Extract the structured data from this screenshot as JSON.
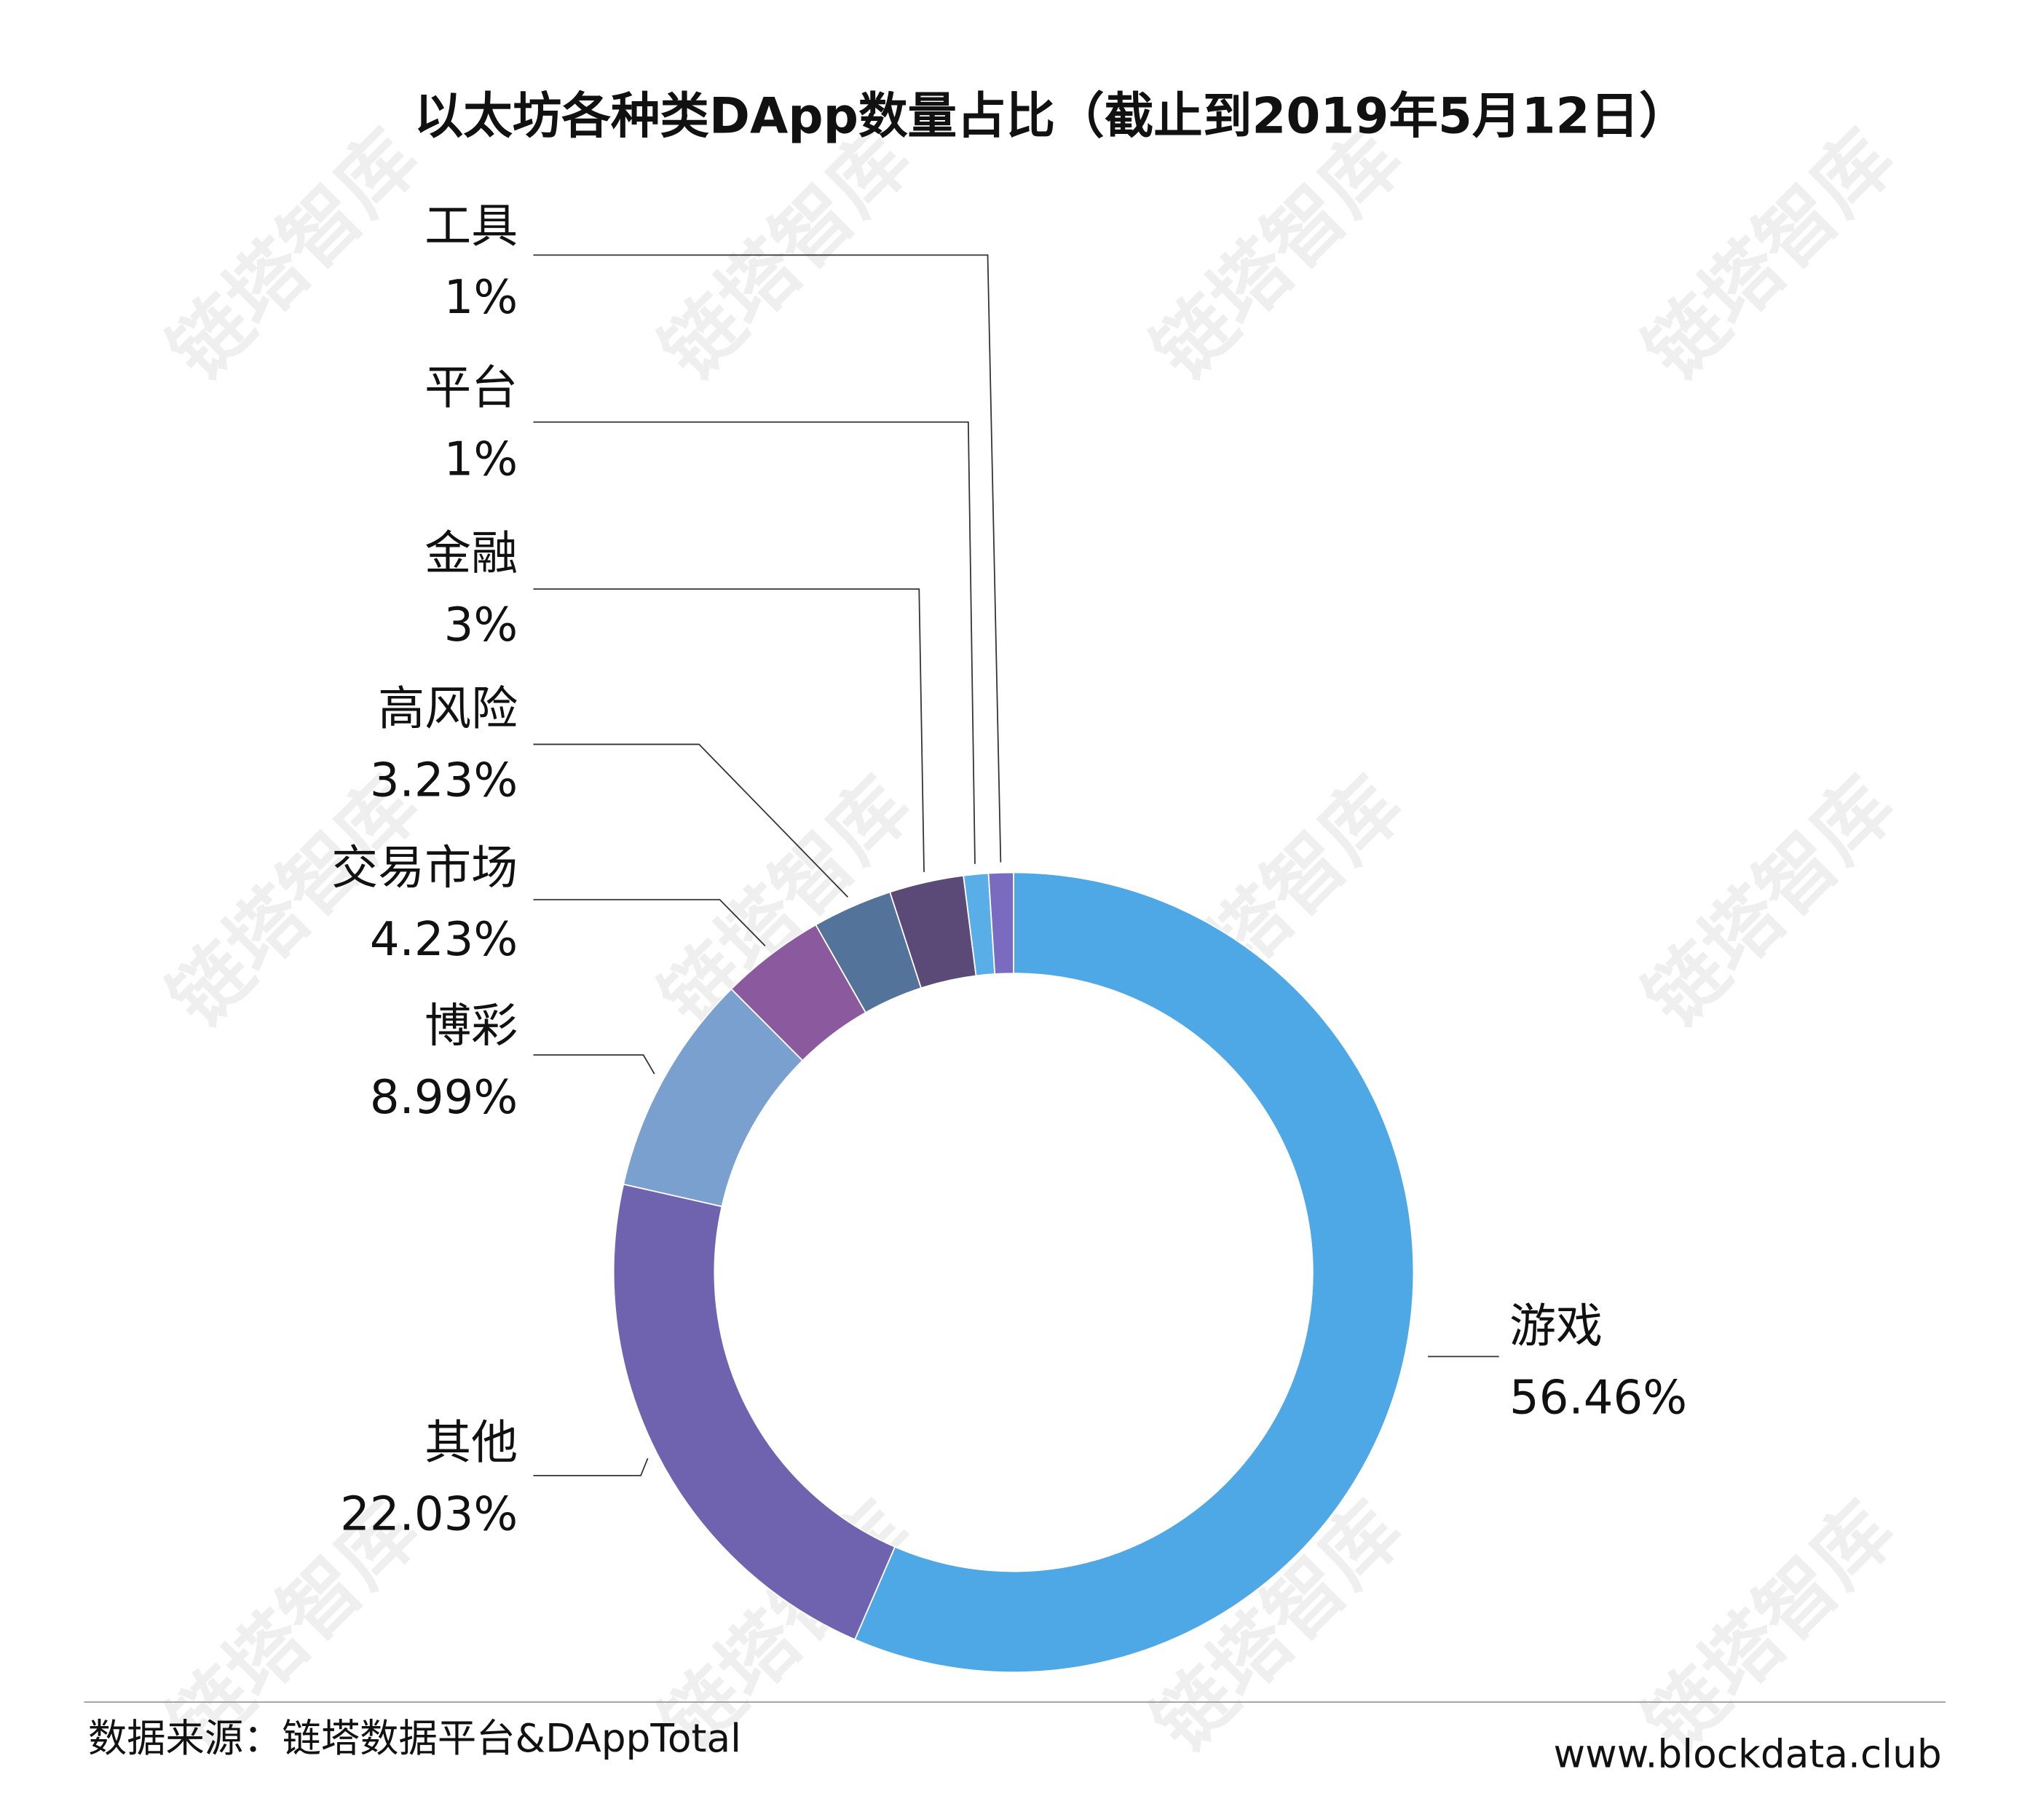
{
  "chart_data": {
    "type": "donut",
    "title": "以太坊各种类DApp数量占比（截止到2019年5月12日）",
    "categories": [
      "游戏",
      "其他",
      "博彩",
      "交易市场",
      "高风险",
      "金融",
      "平台",
      "工具"
    ],
    "values": [
      56.46,
      22.03,
      8.99,
      4.23,
      3.23,
      3,
      1,
      1
    ],
    "value_labels": [
      "56.46%",
      "22.03%",
      "8.99%",
      "4.23%",
      "3.23%",
      "3%",
      "1%",
      "1%"
    ],
    "colors": [
      "#4fa8e6",
      "#6f63b0",
      "#79a0cf",
      "#8b5a9e",
      "#54739a",
      "#5b4a78",
      "#5aaee8",
      "#7a6bc0"
    ]
  },
  "footer": {
    "source": "数据来源：链塔数据平台&DAppTotal",
    "website": "www.blockdata.club"
  },
  "watermark": "链塔智库"
}
